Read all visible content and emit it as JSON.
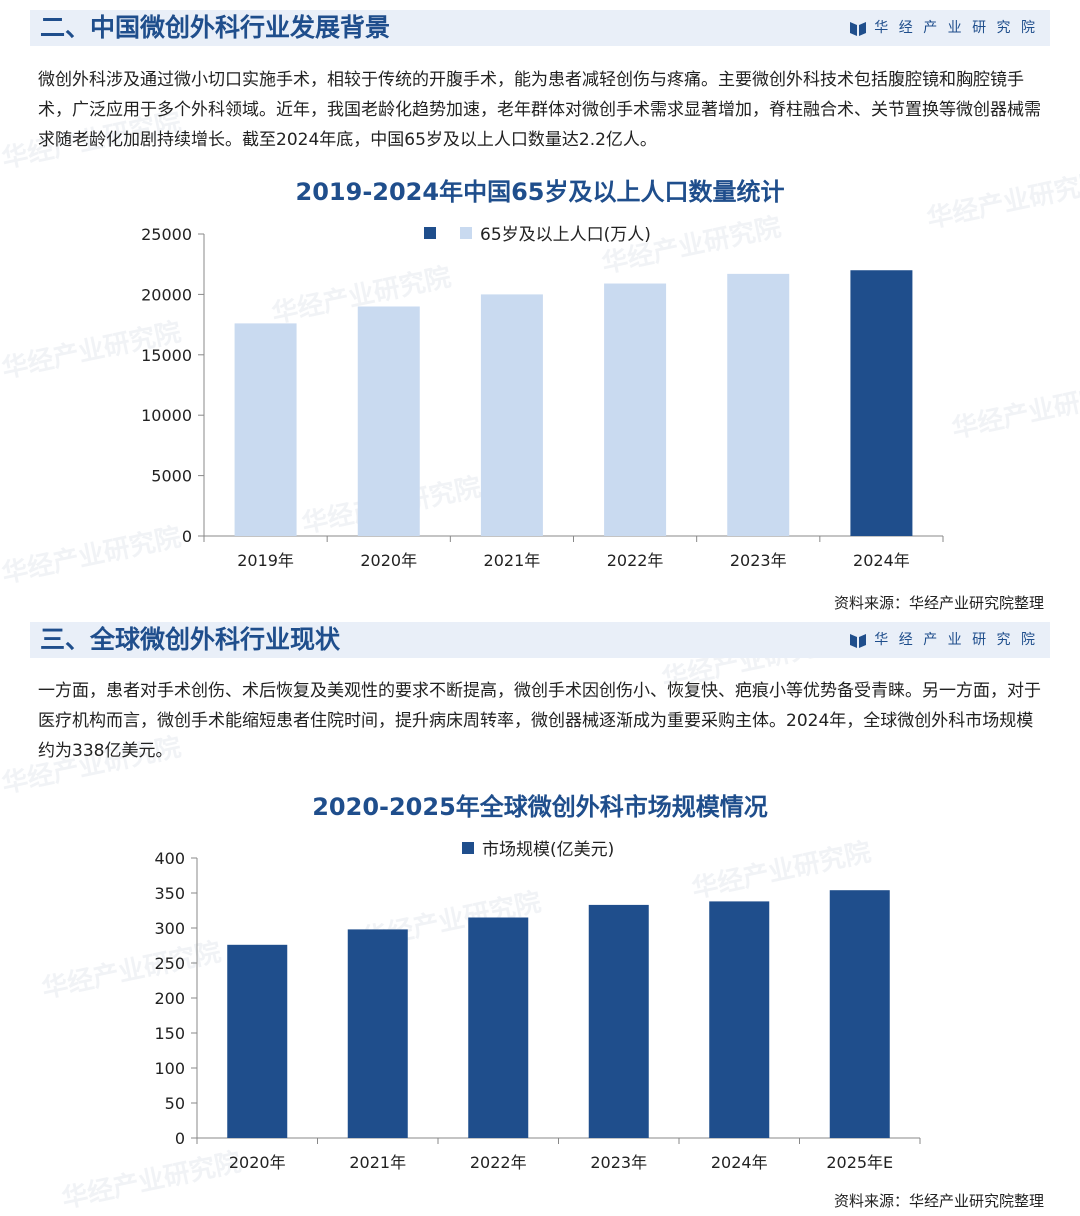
{
  "brand": {
    "name": "华 经 产 业 研 究 院",
    "watermark": "华经产业研究院"
  },
  "section2": {
    "title": "二、中国微创外科行业发展背景",
    "paragraph": "微创外科涉及通过微小切口实施手术，相较于传统的开腹手术，能为患者减轻创伤与疼痛。主要微创外科技术包括腹腔镜和胸腔镜手术，广泛应用于多个外科领域。近年，我国老龄化趋势加速，老年群体对微创手术需求显著增加，脊柱融合术、关节置换等微创器械需求随老龄化加剧持续增长。截至2024年底，中国65岁及以上人口数量达2.2亿人。",
    "source": "资料来源：华经产业研究院整理"
  },
  "section3": {
    "title": "三、全球微创外科行业现状",
    "paragraph": "一方面，患者对手术创伤、术后恢复及美观性的要求不断提高，微创手术因创伤小、恢复快、疤痕小等优势备受青睐。另一方面，对于医疗机构而言，微创手术能缩短患者住院时间，提升病床周转率，微创器械逐渐成为重要采购主体。2024年，全球微创外科市场规模约为338亿美元。",
    "source": "资料来源：华经产业研究院整理"
  },
  "colors": {
    "dark_blue": "#1f4e8c",
    "light_blue": "#c9daf0",
    "title_blue": "#1f4e8c",
    "section_bg": "#e9eff8"
  },
  "chart_data": [
    {
      "type": "bar",
      "title": "2019-2024年中国65岁及以上人口数量统计",
      "categories": [
        "2019年",
        "2020年",
        "2021年",
        "2022年",
        "2023年",
        "2024年"
      ],
      "series": [
        {
          "name": "65岁及以上人口(万人)",
          "values": [
            17600,
            19000,
            20000,
            20900,
            21700,
            22000
          ]
        }
      ],
      "highlight_index": 5,
      "yticks": [
        "0",
        "5000",
        "10000",
        "15000",
        "20000",
        "25000"
      ],
      "ylim": [
        0,
        25000
      ],
      "legend": "top-center",
      "grid": false
    },
    {
      "type": "bar",
      "title": "2020-2025年全球微创外科市场规模情况",
      "categories": [
        "2020年",
        "2021年",
        "2022年",
        "2023年",
        "2024年",
        "2025年E"
      ],
      "series": [
        {
          "name": "市场规模(亿美元)",
          "values": [
            276,
            298,
            315,
            333,
            338,
            354
          ]
        }
      ],
      "yticks": [
        "0",
        "50",
        "100",
        "150",
        "200",
        "250",
        "300",
        "350",
        "400"
      ],
      "ylim": [
        0,
        400
      ],
      "legend": "top-center",
      "grid": false
    }
  ]
}
